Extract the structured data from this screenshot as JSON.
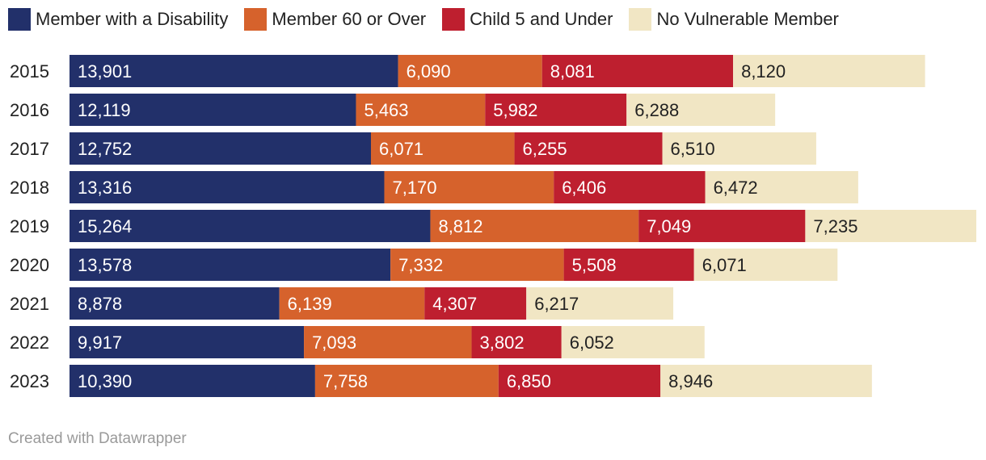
{
  "colors": {
    "disability": "#22306a",
    "sixty_over": "#d6622c",
    "child": "#be1f2f",
    "none": "#f1e6c4",
    "label_dark_bg": "#ffffff",
    "label_light_bg": "#222222",
    "year_label": "#222222"
  },
  "legend": [
    {
      "key": "disability",
      "label": "Member with a Disability"
    },
    {
      "key": "sixty_over",
      "label": "Member 60 or Over"
    },
    {
      "key": "child",
      "label": "Child 5 and Under"
    },
    {
      "key": "none",
      "label": "No Vulnerable Member"
    }
  ],
  "credit": "Created with Datawrapper",
  "chart_data": {
    "type": "bar",
    "orientation": "horizontal",
    "stacked": true,
    "title": "",
    "xlabel": "",
    "ylabel": "",
    "categories": [
      "2015",
      "2016",
      "2017",
      "2018",
      "2019",
      "2020",
      "2021",
      "2022",
      "2023"
    ],
    "series": [
      {
        "key": "disability",
        "name": "Member with a Disability",
        "values": [
          13901,
          12119,
          12752,
          13316,
          15264,
          13578,
          8878,
          9917,
          10390
        ],
        "labels": [
          "13,901",
          "12,119",
          "12,752",
          "13,316",
          "15,264",
          "13,578",
          "8,878",
          "9,917",
          "10,390"
        ]
      },
      {
        "key": "sixty_over",
        "name": "Member 60 or Over",
        "values": [
          6090,
          5463,
          6071,
          7170,
          8812,
          7332,
          6139,
          7093,
          7758
        ],
        "labels": [
          "6,090",
          "5,463",
          "6,071",
          "7,170",
          "8,812",
          "7,332",
          "6,139",
          "7,093",
          "7,758"
        ]
      },
      {
        "key": "child",
        "name": "Child 5 and Under",
        "values": [
          8081,
          5982,
          6255,
          6406,
          7049,
          5508,
          4307,
          3802,
          6850
        ],
        "labels": [
          "8,081",
          "5,982",
          "6,255",
          "6,406",
          "7,049",
          "5,508",
          "4,307",
          "3,802",
          "6,850"
        ]
      },
      {
        "key": "none",
        "name": "No Vulnerable Member",
        "values": [
          8120,
          6288,
          6510,
          6472,
          7235,
          6071,
          6217,
          6052,
          8946
        ],
        "labels": [
          "8,120",
          "6,288",
          "6,510",
          "6,472",
          "7,235",
          "6,071",
          "6,217",
          "6,052",
          "8,946"
        ]
      }
    ],
    "xlim": [
      0,
      38360
    ],
    "grid": false,
    "legend_position": "top-left"
  }
}
